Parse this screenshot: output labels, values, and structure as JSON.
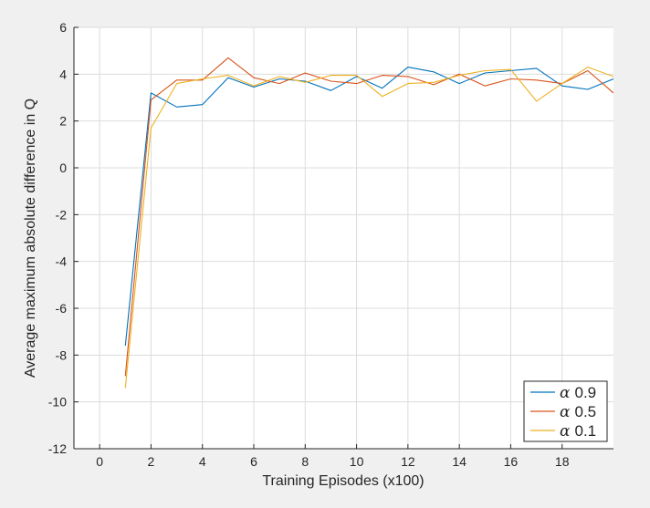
{
  "chart_data": {
    "type": "line",
    "xlabel": "Training Episodes (x100)",
    "ylabel": "Average maximum absolute difference in Q",
    "xlim": [
      -1,
      20
    ],
    "ylim": [
      -12,
      6
    ],
    "x_ticks": [
      "0",
      "2",
      "4",
      "6",
      "8",
      "10",
      "12",
      "14",
      "16",
      "18"
    ],
    "y_ticks": [
      "-12",
      "-10",
      "-8",
      "-6",
      "-4",
      "-2",
      "0",
      "2",
      "4",
      "6"
    ],
    "grid": true,
    "legend_position": "bottom-right",
    "x": [
      1,
      2,
      3,
      4,
      5,
      6,
      7,
      8,
      9,
      10,
      11,
      12,
      13,
      14,
      15,
      16,
      17,
      18,
      19,
      20
    ],
    "series": [
      {
        "name": "α 0.9",
        "legend_symbol": "α",
        "legend_value": "0.9",
        "color": "#0072bd",
        "values": [
          -7.6,
          3.2,
          2.6,
          2.7,
          3.85,
          3.45,
          3.8,
          3.7,
          3.3,
          3.9,
          3.4,
          4.3,
          4.1,
          3.6,
          4.05,
          4.15,
          4.25,
          3.5,
          3.35,
          3.8
        ]
      },
      {
        "name": "α 0.5",
        "legend_symbol": "α",
        "legend_value": "0.5",
        "color": "#d95319",
        "values": [
          -8.9,
          2.9,
          3.75,
          3.75,
          4.7,
          3.85,
          3.6,
          4.05,
          3.7,
          3.6,
          3.95,
          3.9,
          3.55,
          4.0,
          3.5,
          3.8,
          3.75,
          3.6,
          4.15,
          3.2
        ]
      },
      {
        "name": "α 0.1",
        "legend_symbol": "α",
        "legend_value": "0.1",
        "color": "#edb120",
        "values": [
          -9.4,
          1.7,
          3.6,
          3.8,
          3.95,
          3.5,
          3.9,
          3.65,
          3.95,
          3.95,
          3.05,
          3.6,
          3.65,
          3.95,
          4.15,
          4.2,
          2.85,
          3.6,
          4.3,
          3.9
        ]
      }
    ]
  }
}
